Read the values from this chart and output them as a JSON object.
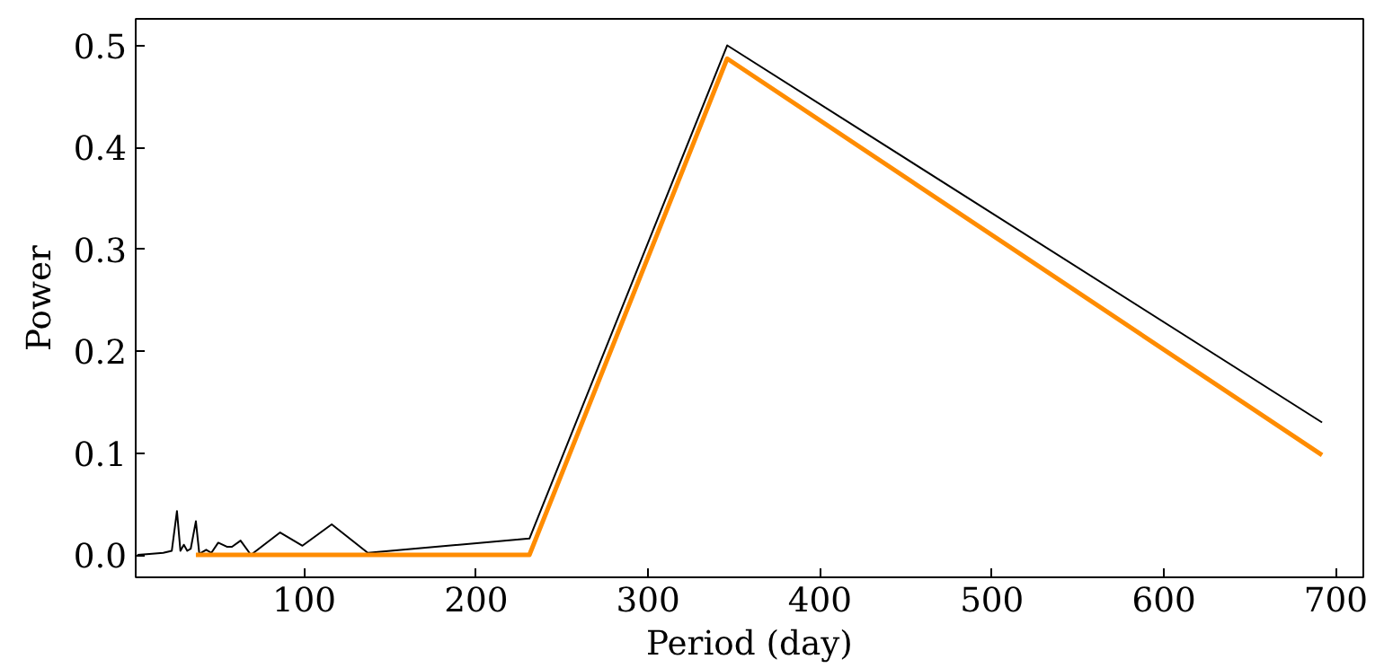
{
  "chart_data": {
    "type": "line",
    "xlabel": "Period (day)",
    "ylabel": "Power",
    "xlim": [
      2,
      716
    ],
    "ylim": [
      -0.022,
      0.526
    ],
    "xticks": [
      100,
      200,
      300,
      400,
      500,
      600,
      700
    ],
    "yticks": [
      {
        "value": 0,
        "label": "0.0"
      },
      0.1,
      0.2,
      0.3,
      0.4,
      0.5
    ],
    "grid": false,
    "series": [
      {
        "color": "#000000",
        "x": [
          3,
          10,
          18,
          23,
          26,
          28,
          30,
          32,
          34,
          37,
          39,
          43,
          46,
          50,
          55,
          58,
          63,
          69,
          86,
          99,
          116,
          137,
          231,
          346,
          692
        ],
        "values": [
          0.0,
          0.001,
          0.002,
          0.004,
          0.043,
          0.004,
          0.01,
          0.004,
          0.006,
          0.033,
          0.001,
          0.005,
          0.002,
          0.012,
          0.008,
          0.008,
          0.014,
          0.0,
          0.022,
          0.009,
          0.03,
          0.002,
          0.016,
          0.5,
          0.13
        ]
      },
      {
        "color": "#ff8c00",
        "x": [
          37,
          231,
          346,
          692
        ],
        "values": [
          0.0,
          0.0,
          0.487,
          0.098
        ]
      }
    ]
  }
}
